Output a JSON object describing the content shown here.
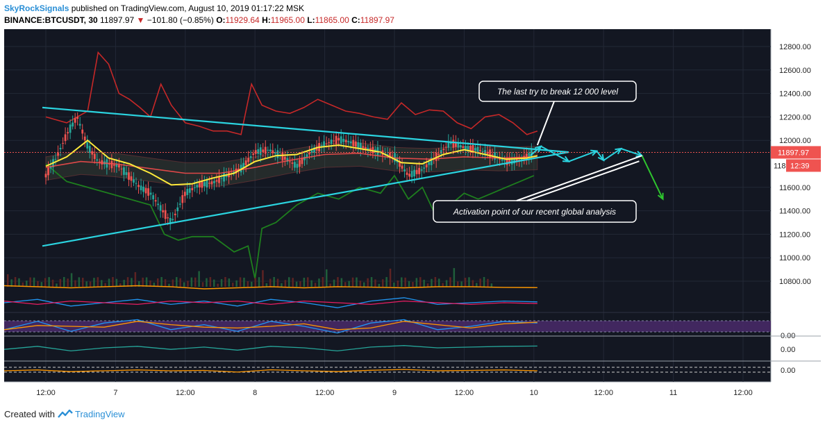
{
  "header": {
    "author": "SkyRockSignals",
    "published_text": "published on TradingView.com, August 10, 2019 01:17:22 MSK",
    "symbol": "BINANCE:BTCUSDT, 30",
    "last": "11897.97",
    "change": "−101.80 (−0.85%)",
    "o_label": "O:",
    "o_value": "11929.64",
    "h_label": "H:",
    "h_value": "11965.00",
    "l_label": "L:",
    "l_value": "11865.00",
    "c_label": "C:",
    "c_value": "11897.97",
    "down_arrow_icon": "triangle-down-icon"
  },
  "footer": {
    "created_with": "Created with",
    "brand": "TradingView",
    "logo_icon": "tradingview-logo-icon"
  },
  "colors": {
    "background": "#131722",
    "grid": "#232836",
    "triangle": "#2bd4e0",
    "projection": "#2bd4e0",
    "breakdown_arrow": "#2ec52e",
    "cloud_upper": "#c62828",
    "cloud_lower": "#1e7e1e",
    "ema_yellow": "#ffeb3b",
    "ema_red": "#ff4d4d",
    "candle_up": "#26a69a",
    "candle_down": "#ef5350",
    "last_price": "#ef5350",
    "osc_orange": "#ff9800",
    "osc_blue": "#2196f3",
    "osc_pink": "#e91e63",
    "stoch_band": "#4a2a6a",
    "osc_green": "#26a69a"
  },
  "chart_data": {
    "type": "line",
    "title": "BINANCE:BTCUSDT, 30",
    "y_axis": {
      "ticks": [
        12800,
        12600,
        12400,
        12200,
        12000,
        11600,
        11400,
        11200,
        11000,
        10800
      ],
      "tick_labels": [
        "12800.00",
        "12600.00",
        "12400.00",
        "12200.00",
        "12000.00",
        "11600.00",
        "11400.00",
        "11200.00",
        "11000.00",
        "10800.00"
      ],
      "ylim": [
        10700,
        12900
      ]
    },
    "x_axis": {
      "labels": [
        "12:00",
        "7",
        "12:00",
        "8",
        "12:00",
        "9",
        "12:00",
        "10",
        "12:00",
        "11",
        "12:00"
      ],
      "xlim": [
        0,
        11
      ]
    },
    "last_price": {
      "value": 11897.97,
      "label": "11897.97",
      "countdown": "12:39",
      "partial_label": "118"
    },
    "price_series": {
      "name": "BTCUSDT",
      "x": [
        0.0,
        0.15,
        0.3,
        0.45,
        0.6,
        0.75,
        0.9,
        1.05,
        1.2,
        1.35,
        1.5,
        1.65,
        1.8,
        2.0,
        2.2,
        2.4,
        2.6,
        2.8,
        3.0,
        3.2,
        3.4,
        3.6,
        3.8,
        4.0,
        4.2,
        4.4,
        4.6,
        4.8,
        5.0,
        5.2,
        5.4,
        5.6,
        5.8,
        6.0,
        6.2,
        6.4,
        6.6,
        6.8,
        7.0
      ],
      "y": [
        11700,
        11850,
        12050,
        12200,
        11950,
        11820,
        11800,
        11780,
        11690,
        11600,
        11550,
        11420,
        11300,
        11550,
        11620,
        11640,
        11700,
        11760,
        11900,
        11920,
        11860,
        11780,
        11900,
        11970,
        12010,
        11980,
        11930,
        11900,
        11860,
        11700,
        11750,
        11860,
        11980,
        11940,
        11920,
        11880,
        11820,
        11830,
        11898
      ]
    },
    "cloud_upper": {
      "x": [
        0.0,
        0.3,
        0.6,
        0.75,
        0.9,
        1.05,
        1.2,
        1.35,
        1.5,
        1.65,
        1.8,
        2.0,
        2.2,
        2.4,
        2.6,
        2.8,
        2.95,
        3.1,
        3.3,
        3.5,
        3.7,
        3.9,
        4.1,
        4.3,
        4.5,
        4.7,
        4.9,
        5.1,
        5.3,
        5.5,
        5.7,
        5.9,
        6.1,
        6.3,
        6.5,
        6.7,
        6.9,
        7.05
      ],
      "y": [
        12200,
        12150,
        12250,
        12750,
        12650,
        12400,
        12350,
        12280,
        12200,
        12480,
        12300,
        12150,
        12120,
        12080,
        12080,
        12050,
        12480,
        12300,
        12250,
        12230,
        12280,
        12350,
        12300,
        12250,
        12230,
        12200,
        12180,
        12320,
        12220,
        12260,
        12250,
        12150,
        12100,
        12200,
        12220,
        12150,
        12050,
        12080
      ]
    },
    "cloud_lower": {
      "x": [
        0.0,
        0.3,
        0.6,
        0.9,
        1.2,
        1.5,
        1.7,
        1.9,
        2.1,
        2.4,
        2.7,
        2.9,
        3.0,
        3.1,
        3.3,
        3.6,
        3.9,
        4.2,
        4.5,
        4.8,
        5.0,
        5.2,
        5.4,
        5.6,
        5.8,
        6.0,
        6.2,
        6.4,
        6.6,
        6.8,
        7.0
      ],
      "y": [
        11800,
        11650,
        11600,
        11550,
        11500,
        11450,
        11200,
        11150,
        11180,
        11180,
        11050,
        11100,
        10820,
        11250,
        11300,
        11450,
        11550,
        11500,
        11600,
        11550,
        11700,
        11500,
        11600,
        11350,
        11450,
        11550,
        11500,
        11550,
        11600,
        11650,
        11700
      ]
    },
    "ema_fast": {
      "name": "EMA",
      "x": [
        0.0,
        0.3,
        0.6,
        0.9,
        1.2,
        1.5,
        1.8,
        2.1,
        2.4,
        2.7,
        3.0,
        3.3,
        3.6,
        3.9,
        4.2,
        4.5,
        4.8,
        5.1,
        5.4,
        5.7,
        6.0,
        6.3,
        6.6,
        6.9,
        7.05
      ],
      "y": [
        11780,
        11860,
        12000,
        11850,
        11800,
        11720,
        11620,
        11630,
        11680,
        11720,
        11820,
        11870,
        11880,
        11940,
        11960,
        11930,
        11900,
        11810,
        11800,
        11880,
        11920,
        11880,
        11840,
        11850,
        11870
      ]
    },
    "ema_slow": {
      "name": "EMA2",
      "x": [
        0.0,
        0.5,
        1.0,
        1.5,
        2.0,
        2.5,
        3.0,
        3.5,
        4.0,
        4.5,
        5.0,
        5.5,
        6.0,
        6.5,
        7.05
      ],
      "y": [
        11770,
        11820,
        11800,
        11760,
        11720,
        11720,
        11770,
        11830,
        11880,
        11890,
        11850,
        11840,
        11860,
        11850,
        11860
      ]
    },
    "triangle": {
      "upper_line": {
        "x": [
          -0.05,
          7.5
        ],
        "y": [
          12280,
          11900
        ]
      },
      "lower_line": {
        "x": [
          -0.05,
          7.5
        ],
        "y": [
          11100,
          11900
        ]
      }
    },
    "projection_path": {
      "x": [
        6.95,
        7.1,
        7.5,
        7.9,
        8.0,
        8.25,
        8.55
      ],
      "y": [
        11870,
        11950,
        11820,
        11910,
        11830,
        11930,
        11870
      ]
    },
    "breakdown_arrow": {
      "x": [
        8.55,
        8.85
      ],
      "y": [
        11870,
        11500
      ]
    },
    "annotations": [
      {
        "text": "The last try to break 12 000 level",
        "target_x": 7.05,
        "target_y": 11960
      },
      {
        "text": "Activation point of our recent global analysis",
        "target_x": 8.55,
        "target_y": 11870
      }
    ],
    "indicators": [
      {
        "name": "volume_ma",
        "values": [
          0.55,
          0.5,
          0.45,
          0.5,
          0.55,
          0.5,
          0.4,
          0.45,
          0.5,
          0.45,
          0.5,
          0.48,
          0.45,
          0.5,
          0.5,
          0.47,
          0.46
        ]
      },
      {
        "name": "osc_blue",
        "values": [
          0.5,
          0.7,
          0.3,
          0.5,
          0.7,
          0.4,
          0.6,
          0.3,
          0.7,
          0.5,
          0.2,
          0.6,
          0.8,
          0.4,
          0.5,
          0.6,
          0.55
        ]
      },
      {
        "name": "osc_pink",
        "values": [
          0.6,
          0.4,
          0.6,
          0.5,
          0.4,
          0.6,
          0.5,
          0.6,
          0.4,
          0.6,
          0.5,
          0.4,
          0.6,
          0.5,
          0.4,
          0.5,
          0.45
        ]
      },
      {
        "name": "stochastic",
        "axis_label": "0.00",
        "values": [
          0.3,
          0.8,
          0.2,
          0.7,
          0.9,
          0.3,
          0.6,
          0.2,
          0.8,
          0.5,
          0.1,
          0.7,
          0.9,
          0.3,
          0.5,
          0.8,
          0.7
        ]
      },
      {
        "name": "momentum",
        "axis_label": "0.00",
        "values": [
          0.4,
          0.6,
          0.3,
          0.5,
          0.6,
          0.4,
          0.55,
          0.35,
          0.6,
          0.5,
          0.3,
          0.55,
          0.65,
          0.5,
          0.55,
          0.6,
          0.62
        ]
      },
      {
        "name": "macd",
        "axis_label": "0.00",
        "values": [
          0.5,
          0.55,
          0.45,
          0.5,
          0.55,
          0.5,
          0.52,
          0.42,
          0.56,
          0.5,
          0.45,
          0.53,
          0.58,
          0.5,
          0.52,
          0.55,
          0.5
        ]
      }
    ]
  }
}
